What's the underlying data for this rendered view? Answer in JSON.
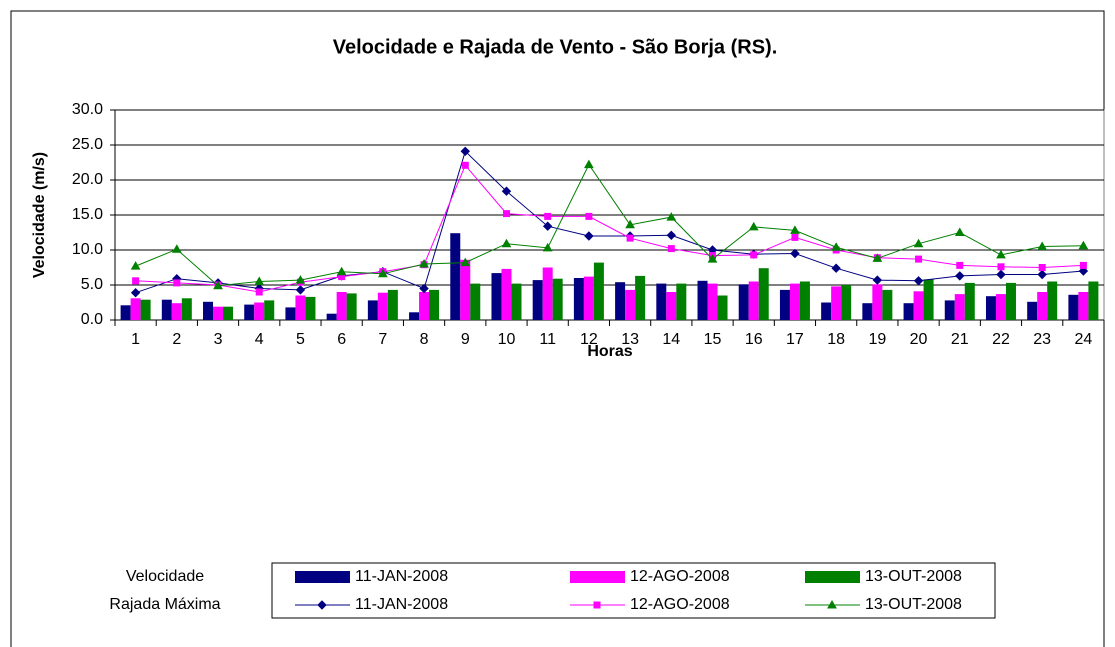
{
  "chart_data": {
    "type": "combo",
    "title": "Velocidade e Rajada de Vento - São Borja (RS).",
    "x_label": "Horas",
    "y_label": "Velocidade (m/s)",
    "categories": [
      "1",
      "2",
      "3",
      "4",
      "5",
      "6",
      "7",
      "8",
      "9",
      "10",
      "11",
      "12",
      "13",
      "14",
      "15",
      "16",
      "17",
      "18",
      "19",
      "20",
      "21",
      "22",
      "23",
      "24"
    ],
    "ylim": [
      0,
      30
    ],
    "yticks": [
      {
        "value": 0,
        "label": "0.0"
      },
      {
        "value": 5,
        "label": "5.0"
      },
      {
        "value": 10,
        "label": "10.0"
      },
      {
        "value": 15,
        "label": "15.0"
      },
      {
        "value": 20,
        "label": "20.0"
      },
      {
        "value": 25,
        "label": "25.0"
      },
      {
        "value": 30,
        "label": "30.0"
      }
    ],
    "grid": true,
    "legend_groups": [
      "Velocidade",
      "Rajada Máxima"
    ],
    "series": [
      {
        "name": "11-JAN-2008",
        "kind": "bar",
        "group": 0,
        "color": "#000080",
        "values": [
          2.1,
          2.9,
          2.6,
          2.2,
          1.8,
          0.9,
          2.8,
          1.1,
          12.4,
          6.7,
          5.7,
          6.0,
          5.4,
          5.2,
          5.6,
          5.1,
          4.3,
          2.5,
          2.4,
          2.4,
          2.8,
          3.4,
          2.6,
          3.6
        ]
      },
      {
        "name": "12-AGO-2008",
        "kind": "bar",
        "group": 0,
        "color": "#ff00ff",
        "values": [
          3.1,
          2.4,
          1.9,
          2.5,
          3.5,
          4.0,
          3.9,
          4.0,
          8.6,
          7.3,
          7.5,
          6.2,
          4.3,
          4.0,
          5.2,
          5.5,
          5.2,
          4.8,
          5.1,
          4.1,
          3.7,
          3.7,
          4.0,
          4.0
        ]
      },
      {
        "name": "13-OUT-2008",
        "kind": "bar",
        "group": 0,
        "color": "#008000",
        "values": [
          2.9,
          3.1,
          1.9,
          2.8,
          3.3,
          3.8,
          4.3,
          4.3,
          5.2,
          5.2,
          5.9,
          8.2,
          6.3,
          5.2,
          3.5,
          7.4,
          5.5,
          5.0,
          4.3,
          5.8,
          5.3,
          5.3,
          5.5,
          5.5
        ]
      },
      {
        "name": "11-JAN-2008",
        "kind": "line",
        "group": 1,
        "marker": "diamond",
        "color": "#000080",
        "values": [
          3.9,
          5.9,
          5.3,
          4.5,
          4.3,
          6.3,
          6.9,
          4.5,
          24.1,
          18.4,
          13.4,
          12.0,
          12.0,
          12.1,
          10.0,
          9.4,
          9.5,
          7.4,
          5.7,
          5.6,
          6.3,
          6.5,
          6.5,
          7.0
        ]
      },
      {
        "name": "12-AGO-2008",
        "kind": "line",
        "group": 1,
        "marker": "square",
        "color": "#ff00ff",
        "values": [
          5.6,
          5.3,
          5.0,
          4.0,
          5.4,
          6.2,
          6.9,
          7.9,
          22.1,
          15.2,
          14.8,
          14.8,
          11.7,
          10.2,
          9.2,
          9.3,
          11.8,
          10.0,
          8.9,
          8.7,
          7.8,
          7.6,
          7.5,
          7.8
        ]
      },
      {
        "name": "13-OUT-2008",
        "kind": "line",
        "group": 1,
        "marker": "triangle",
        "color": "#008000",
        "values": [
          7.7,
          10.1,
          4.9,
          5.5,
          5.7,
          6.9,
          6.6,
          8.0,
          8.2,
          10.9,
          10.3,
          22.2,
          13.6,
          14.7,
          8.7,
          13.3,
          12.8,
          10.4,
          8.8,
          10.9,
          12.5,
          9.3,
          10.5,
          10.6
        ]
      }
    ]
  }
}
